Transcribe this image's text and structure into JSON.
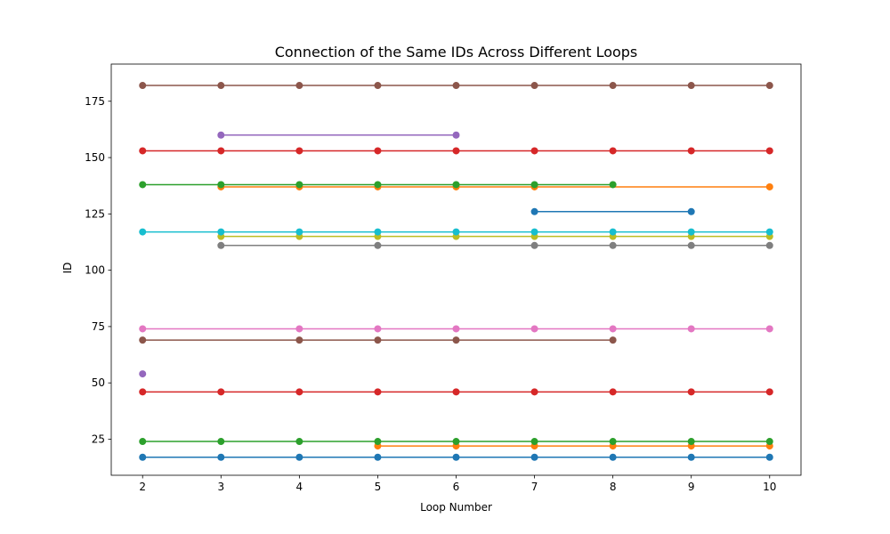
{
  "chart_data": {
    "type": "line",
    "title": "Connection of the Same IDs Across Different Loops",
    "xlabel": "Loop Number",
    "ylabel": "ID",
    "xlim": [
      1.6,
      10.4
    ],
    "ylim": [
      9,
      191.5
    ],
    "xticks": [
      2,
      3,
      4,
      5,
      6,
      7,
      8,
      9,
      10
    ],
    "yticks": [
      25,
      50,
      75,
      100,
      125,
      150,
      175
    ],
    "grid": false,
    "legend": "none",
    "series": [
      {
        "color": "#1f77b4",
        "x": [
          2,
          3,
          4,
          5,
          6,
          7,
          8,
          9,
          10
        ],
        "y": [
          17,
          17,
          17,
          17,
          17,
          17,
          17,
          17,
          17
        ]
      },
      {
        "color": "#ff7f0e",
        "x": [
          5,
          6,
          7,
          8,
          9,
          10
        ],
        "y": [
          22,
          22,
          22,
          22,
          22,
          22
        ]
      },
      {
        "color": "#2ca02c",
        "x": [
          2,
          3,
          4,
          5,
          6,
          7,
          8,
          9,
          10
        ],
        "y": [
          24,
          24,
          24,
          24,
          24,
          24,
          24,
          24,
          24
        ]
      },
      {
        "color": "#d62728",
        "x": [
          2,
          3,
          4,
          5,
          6,
          7,
          8,
          9,
          10
        ],
        "y": [
          46,
          46,
          46,
          46,
          46,
          46,
          46,
          46,
          46
        ]
      },
      {
        "color": "#9467bd",
        "x": [
          2
        ],
        "y": [
          54
        ]
      },
      {
        "color": "#8c564b",
        "x": [
          2,
          4,
          5,
          6,
          8
        ],
        "y": [
          69,
          69,
          69,
          69,
          69
        ]
      },
      {
        "color": "#e377c2",
        "x": [
          2,
          4,
          5,
          6,
          7,
          8,
          9,
          10
        ],
        "y": [
          74,
          74,
          74,
          74,
          74,
          74,
          74,
          74
        ]
      },
      {
        "color": "#7f7f7f",
        "x": [
          3,
          5,
          7,
          8,
          9,
          10
        ],
        "y": [
          111,
          111,
          111,
          111,
          111,
          111
        ]
      },
      {
        "color": "#bcbd22",
        "x": [
          3,
          4,
          5,
          6,
          7,
          8,
          9,
          10
        ],
        "y": [
          115,
          115,
          115,
          115,
          115,
          115,
          115,
          115
        ]
      },
      {
        "color": "#17becf",
        "x": [
          2,
          3,
          4,
          5,
          6,
          7,
          8,
          9,
          10
        ],
        "y": [
          117,
          117,
          117,
          117,
          117,
          117,
          117,
          117,
          117
        ]
      },
      {
        "color": "#1f77b4",
        "x": [
          7,
          9
        ],
        "y": [
          126,
          126
        ]
      },
      {
        "color": "#ff7f0e",
        "x": [
          3,
          4,
          5,
          6,
          7,
          10
        ],
        "y": [
          137,
          137,
          137,
          137,
          137,
          137
        ]
      },
      {
        "color": "#2ca02c",
        "x": [
          2,
          3,
          4,
          5,
          6,
          7,
          8
        ],
        "y": [
          138,
          138,
          138,
          138,
          138,
          138,
          138
        ]
      },
      {
        "color": "#d62728",
        "x": [
          2,
          3,
          4,
          5,
          6,
          7,
          8,
          9,
          10
        ],
        "y": [
          153,
          153,
          153,
          153,
          153,
          153,
          153,
          153,
          153
        ]
      },
      {
        "color": "#9467bd",
        "x": [
          3,
          6
        ],
        "y": [
          160,
          160
        ]
      },
      {
        "color": "#8c564b",
        "x": [
          2,
          3,
          4,
          5,
          6,
          7,
          8,
          9,
          10
        ],
        "y": [
          182,
          182,
          182,
          182,
          182,
          182,
          182,
          182,
          182
        ]
      }
    ]
  }
}
